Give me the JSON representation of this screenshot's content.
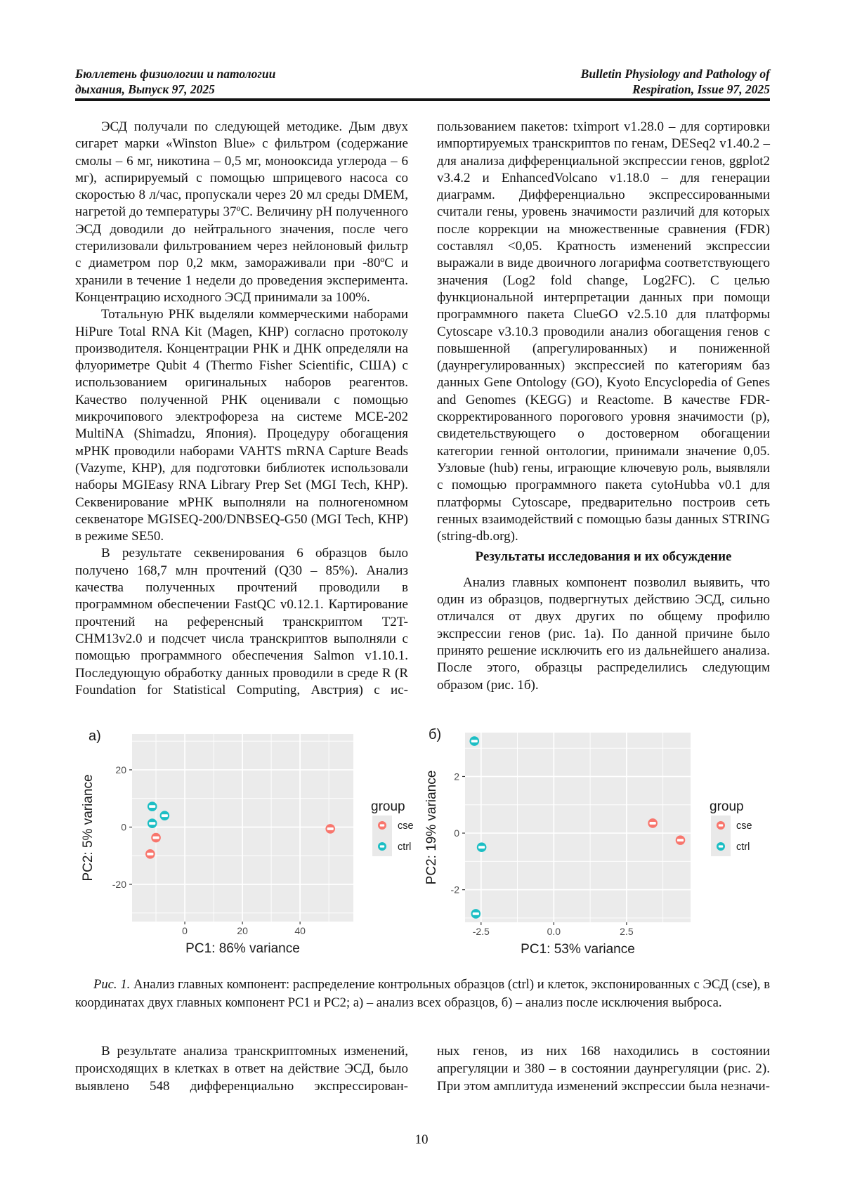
{
  "header": {
    "left_line1": "Бюллетень физиологии и патологии",
    "left_line2": "дыхания, Выпуск 97, 2025",
    "right_line1": "Bulletin Physiology and Pathology of",
    "right_line2": "Respiration, Issue 97, 2025"
  },
  "left_column": {
    "para1": "ЭСД получали по следующей методике. Дым двух сигарет марки «Winston Blue» с фильтром (содержание смолы – 6 мг, никотина – 0,5 мг, монооксида углерода – 6 мг), аспирируемый с помощью шприцевого насоса со скоростью 8 л/час, пропускали через 20 мл среды DMEM, нагретой до температуры 37ºС. Величину pH полученного ЭСД доводили до нейтрального значения, после чего стерилизовали фильтрованием через нейлоновый фильтр с диаметром пор 0,2 мкм, замораживали при -80ºС и хранили в течение 1 недели до проведения эксперимента. Концентрацию исходного ЭСД принимали за 100%.",
    "para2": "Тотальную РНК выделяли коммерческими наборами HiPure Total RNA Kit (Magen, КНР) согласно протоколу производителя. Концентрации РНК и ДНК определяли на флуориметре Qubit 4 (Thermo Fisher Scientific, США) с использованием оригинальных наборов реагентов. Качество полученной РНК оценивали с помощью микрочипового электрофореза на системе MCE-202 MultiNA (Shimadzu, Япония). Процедуру обогащения мРНК проводили наборами VAHTS mRNA Capture Beads (Vazyme, КНР), для подготовки библиотек использовали наборы MGIEasy RNA Library Prep Set (MGI Tech, КНР). Секвенирование мРНК выполняли на полногеномном секвенаторе MGISEQ-200/DNBSEQ-G50 (MGI Tech, КНР) в режиме SE50.",
    "para3": "В результате секвенирования 6 образцов было получено 168,7 млн прочтений (Q30 – 85%). Анализ качества полученных прочтений проводили в программном обеспечении FastQC v0.12.1. Картирование прочтений на референсный транскриптом T2T-CHM13v2.0 и подсчет числа транскриптов выполняли с помощью программного обеспечения Salmon v1.10.1. Последующую обработку данных проводили в среде R (R Foundation for Statistical Computing, Австрия) с ис-"
  },
  "right_column": {
    "para1": "пользованием пакетов: tximport v1.28.0 – для сортировки импортируемых транскриптов по генам, DESeq2 v1.40.2 – для анализа дифференциальной экспрессии генов, ggplot2 v3.4.2 и EnhancedVolcano v1.18.0 – для генерации диаграмм. Дифференциально экспрессированными считали гены, уровень значимости различий для которых после коррекции на множественные сравнения (FDR) составлял <0,05. Кратность изменений экспрессии выражали в виде двоичного логарифма соответствующего значения (Log2 fold change, Log2FC). С целью функциональной интерпретации данных при помощи программного пакета ClueGO v2.5.10 для платформы Cytoscape v3.10.3 проводили анализ обогащения генов с повышенной (апрегулированных) и пониженной (даунрегулированных) экспрессией по категориям баз данных Gene Ontology (GO), Kyoto Encyclopedia of Genes and Genomes (KEGG) и Reactome. В качестве FDR-скорректированного порогового уровня значимости (p), свидетельствующего о достоверном обогащении категории генной онтологии, принимали значение 0,05. Узловые (hub) гены, играющие ключевую роль, выявляли с помощью программного пакета cytoHubba v0.1 для платформы Cytoscape, предварительно построив сеть генных взаимодействий с помощью базы данных STRING (string-db.org).",
    "heading": "Результаты исследования и их обсуждение",
    "para2": "Анализ главных компонент позволил выявить, что один из образцов, подвергнутых действию ЭСД, сильно отличался от двух других по общему профилю экспрессии генов (рис. 1а). По данной причине было принято решение исключить его из дальнейшего анализа. После этого, образцы распределились следующим образом (рис. 1б)."
  },
  "figure": {
    "caption_label": "Рис. 1.",
    "caption_text": " Анализ главных компонент: распределение контрольных образцов (ctrl) и клеток, экспонированных с ЭСД (cse), в координатах двух главных компонент PC1 и PC2; а) – анализ всех образцов, б) – анализ после исключения выброса."
  },
  "bottom": {
    "left_para": "В результате анализа транскриптомных изменений, происходящих в клетках в ответ на действие ЭСД, было выявлено 548 дифференциально экспрессирован-",
    "right_para": "ных генов, из них 168 находились в состоянии апрегуляции и 380 – в состоянии даунрегуляции (рис. 2). При этом амплитуда изменений экспрессии была незначи-"
  },
  "page_number": "10",
  "colors": {
    "panel_bg": "#EBEBEB",
    "grid": "#FFFFFF",
    "legend_key_bg": "#E9E9E9",
    "tick_label": "#4D4D4D",
    "axis_title": "#1A1A1A",
    "cse": "#F8766D",
    "ctrl": "#1CBEC4",
    "point_inner_label": "#FFFFFF"
  },
  "chart_data": [
    {
      "type": "scatter",
      "panel_label": "а)",
      "xlabel": "PC1: 86% variance",
      "ylabel": "PC2: 5% variance",
      "x_range": [
        -18.3,
        58.5
      ],
      "y_range": [
        -33,
        32.5
      ],
      "x_ticks": [
        {
          "v": 0,
          "label": "0"
        },
        {
          "v": 20,
          "label": "20"
        },
        {
          "v": 40,
          "label": "40"
        }
      ],
      "y_ticks": [
        {
          "v": -20,
          "label": "-20"
        },
        {
          "v": 0,
          "label": "0"
        },
        {
          "v": 20,
          "label": "20"
        }
      ],
      "x_minor": [
        -10,
        10,
        30,
        50
      ],
      "y_minor": [
        -30,
        -10,
        10,
        30
      ],
      "grid": true,
      "legend_title": "group",
      "legend_position": "right",
      "series": [
        {
          "name": "cse",
          "points": [
            [
              -10,
              -3.7
            ],
            [
              -12,
              -9.4
            ],
            [
              50.5,
              -0.6
            ]
          ]
        },
        {
          "name": "ctrl",
          "points": [
            [
              -11.3,
              7.2
            ],
            [
              -7,
              4
            ],
            [
              -11.3,
              1.3
            ]
          ]
        }
      ]
    },
    {
      "type": "scatter",
      "panel_label": "б)",
      "xlabel": "PC1: 53% variance",
      "ylabel": "PC2: 19% variance",
      "x_range": [
        -3.05,
        4.7
      ],
      "y_range": [
        -3.15,
        3.55
      ],
      "x_ticks": [
        {
          "v": -2.5,
          "label": "-2.5"
        },
        {
          "v": 0,
          "label": "0.0"
        },
        {
          "v": 2.5,
          "label": "2.5"
        }
      ],
      "y_ticks": [
        {
          "v": -2,
          "label": "-2"
        },
        {
          "v": 0,
          "label": "0"
        },
        {
          "v": 2,
          "label": "2"
        }
      ],
      "x_minor": [
        -1.25,
        1.25,
        3.75
      ],
      "y_minor": [
        -3,
        -1,
        1,
        3
      ],
      "grid": true,
      "legend_title": "group",
      "legend_position": "right",
      "series": [
        {
          "name": "cse",
          "points": [
            [
              3.4,
              0.35
            ],
            [
              4.35,
              -0.25
            ]
          ]
        },
        {
          "name": "ctrl",
          "points": [
            [
              -2.73,
              3.25
            ],
            [
              -2.48,
              -0.5
            ],
            [
              -2.68,
              -2.85
            ]
          ]
        }
      ]
    }
  ]
}
